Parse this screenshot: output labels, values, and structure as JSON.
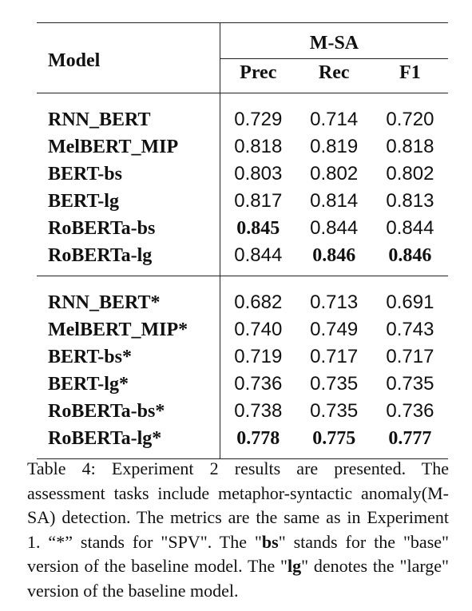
{
  "table": {
    "model_header": "Model",
    "group_header": "M-SA",
    "columns": [
      "Prec",
      "Rec",
      "F1"
    ],
    "section1": [
      {
        "model": "RNN_BERT",
        "values": [
          "0.729",
          "0.714",
          "0.720"
        ],
        "bold": [
          false,
          false,
          false
        ]
      },
      {
        "model": "MelBERT_MIP",
        "values": [
          "0.818",
          "0.819",
          "0.818"
        ],
        "bold": [
          false,
          false,
          false
        ]
      },
      {
        "model": "BERT-bs",
        "values": [
          "0.803",
          "0.802",
          "0.802"
        ],
        "bold": [
          false,
          false,
          false
        ]
      },
      {
        "model": "BERT-lg",
        "values": [
          "0.817",
          "0.814",
          "0.813"
        ],
        "bold": [
          false,
          false,
          false
        ]
      },
      {
        "model": "RoBERTa-bs",
        "values": [
          "0.845",
          "0.844",
          "0.844"
        ],
        "bold": [
          true,
          false,
          false
        ]
      },
      {
        "model": "RoBERTa-lg",
        "values": [
          "0.844",
          "0.846",
          "0.846"
        ],
        "bold": [
          false,
          true,
          true
        ]
      }
    ],
    "section2": [
      {
        "model": "RNN_BERT*",
        "values": [
          "0.682",
          "0.713",
          "0.691"
        ],
        "bold": [
          false,
          false,
          false
        ]
      },
      {
        "model": "MelBERT_MIP*",
        "values": [
          "0.740",
          "0.749",
          "0.743"
        ],
        "bold": [
          false,
          false,
          false
        ]
      },
      {
        "model": "BERT-bs*",
        "values": [
          "0.719",
          "0.717",
          "0.717"
        ],
        "bold": [
          false,
          false,
          false
        ]
      },
      {
        "model": "BERT-lg*",
        "values": [
          "0.736",
          "0.735",
          "0.735"
        ],
        "bold": [
          false,
          false,
          false
        ]
      },
      {
        "model": "RoBERTa-bs*",
        "values": [
          "0.738",
          "0.735",
          "0.736"
        ],
        "bold": [
          false,
          false,
          false
        ]
      },
      {
        "model": "RoBERTa-lg*",
        "values": [
          "0.778",
          "0.775",
          "0.777"
        ],
        "bold": [
          true,
          true,
          true
        ]
      }
    ]
  },
  "caption": {
    "part1": "Table 4: Experiment 2 results are presented. The assessment tasks include metaphor-syntactic anomaly(M-SA) detection. The metrics are the same as in Experiment 1. “*” stands for \"SPV\". The \"",
    "bs": "bs",
    "part2": "\" stands for the \"base\" version of the baseline model. The \"",
    "lg": "lg",
    "part3": "\" denotes the \"large\" version of the baseline model."
  }
}
